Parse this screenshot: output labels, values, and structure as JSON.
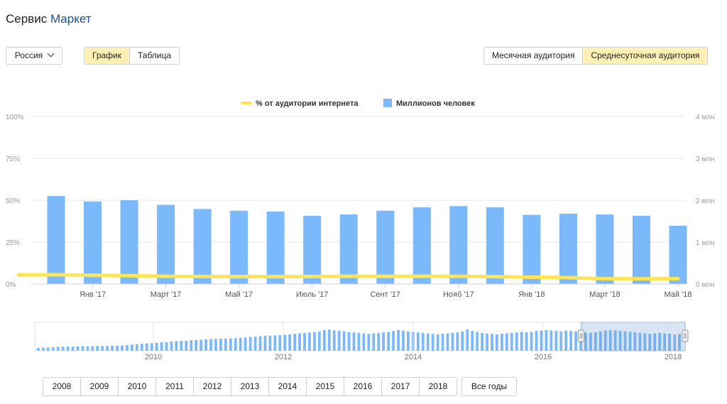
{
  "header": {
    "title_prefix": "Сервис",
    "title_brand": "Маркет"
  },
  "controls": {
    "region": "Россия",
    "view_tabs": [
      "График",
      "Таблица"
    ],
    "view_active": 0,
    "audience_tabs": [
      "Месячная аудитория",
      "Среднесуточная аудитория"
    ],
    "audience_active": 1
  },
  "colors": {
    "bars": "#7cb9fb",
    "line": "#ffe552",
    "active_tab": "#fff1b5",
    "navigator_bars": "#7cb9fb",
    "brand": "#1e4e8c"
  },
  "chart_data": {
    "type": "bar",
    "legend": {
      "position": "top-center",
      "items": [
        "% от аудитории интернета",
        "Миллионов человек"
      ]
    },
    "categories": [
      "Дек '16",
      "Янв '17",
      "Фев '17",
      "Март '17",
      "Апр '17",
      "Май '17",
      "Июнь '17",
      "Июль '17",
      "Авг '17",
      "Сент '17",
      "Окт '17",
      "Нояб '17",
      "Дек '17",
      "Янв '18",
      "Фев '18",
      "Март '18",
      "Апр '18",
      "Май '18"
    ],
    "x_tick_labels": [
      "Янв '17",
      "Март '17",
      "Май '17",
      "Июль '17",
      "Сент '17",
      "Нояб '17",
      "Янв '18",
      "Март '18",
      "Май '18"
    ],
    "series": [
      {
        "name": "Миллионов человек",
        "type": "bar",
        "axis": "right",
        "values": [
          2.1,
          1.97,
          2.0,
          1.89,
          1.79,
          1.75,
          1.73,
          1.63,
          1.66,
          1.75,
          1.83,
          1.86,
          1.83,
          1.65,
          1.68,
          1.66,
          1.63,
          1.39
        ]
      },
      {
        "name": "% от аудитории интернета",
        "type": "line",
        "axis": "left",
        "values": [
          5.5,
          5.2,
          5.0,
          4.6,
          4.5,
          4.4,
          4.4,
          4.5,
          4.6,
          4.6,
          4.6,
          4.6,
          4.4,
          4.1,
          3.8,
          3.2,
          3.1,
          3.2
        ]
      }
    ],
    "y_left": {
      "ticks": [
        "0%",
        "25%",
        "50%",
        "75%",
        "100%"
      ],
      "ylim": [
        0,
        100
      ]
    },
    "y_right": {
      "ticks": [
        "0 млн",
        "1 млн",
        "2 млн",
        "3 млн",
        "4 млн"
      ],
      "ylim": [
        0,
        4
      ]
    },
    "grid": true
  },
  "navigator": {
    "year_labels": [
      "2010",
      "2012",
      "2014",
      "2016",
      "2018"
    ],
    "range_start": 0.84,
    "range_end": 1.0,
    "values": [
      0.12,
      0.13,
      0.14,
      0.15,
      0.16,
      0.17,
      0.18,
      0.17,
      0.18,
      0.19,
      0.18,
      0.19,
      0.2,
      0.19,
      0.2,
      0.21,
      0.21,
      0.22,
      0.24,
      0.25,
      0.27,
      0.29,
      0.3,
      0.31,
      0.33,
      0.35,
      0.36,
      0.38,
      0.4,
      0.41,
      0.42,
      0.44,
      0.45,
      0.46,
      0.47,
      0.48,
      0.49,
      0.5,
      0.5,
      0.51,
      0.52,
      0.53,
      0.55,
      0.57,
      0.58,
      0.6,
      0.62,
      0.63,
      0.64,
      0.65,
      0.66,
      0.68,
      0.7,
      0.72,
      0.74,
      0.76,
      0.78,
      0.8,
      0.85,
      0.88,
      0.85,
      0.83,
      0.81,
      0.78,
      0.76,
      0.74,
      0.72,
      0.7,
      0.72,
      0.74,
      0.76,
      0.78,
      0.82,
      0.86,
      0.84,
      0.8,
      0.78,
      0.76,
      0.74,
      0.72,
      0.7,
      0.68,
      0.7,
      0.72,
      0.74,
      0.76,
      0.8,
      0.88,
      0.82,
      0.78,
      0.74,
      0.72,
      0.7,
      0.68,
      0.7,
      0.72,
      0.74,
      0.76,
      0.78,
      0.76,
      0.78,
      0.82,
      0.84,
      0.86,
      0.84,
      0.82,
      0.8,
      0.84,
      0.82,
      0.8,
      0.78,
      0.76,
      0.74,
      0.76,
      0.8,
      0.84,
      0.86,
      0.84,
      0.82,
      0.8,
      0.78,
      0.76,
      0.74,
      0.72,
      0.7,
      0.72,
      0.74,
      0.72,
      0.7,
      0.68,
      0.7
    ]
  },
  "year_buttons": [
    "2008",
    "2009",
    "2010",
    "2011",
    "2012",
    "2013",
    "2014",
    "2015",
    "2016",
    "2017",
    "2018"
  ],
  "all_years_label": "Все годы"
}
